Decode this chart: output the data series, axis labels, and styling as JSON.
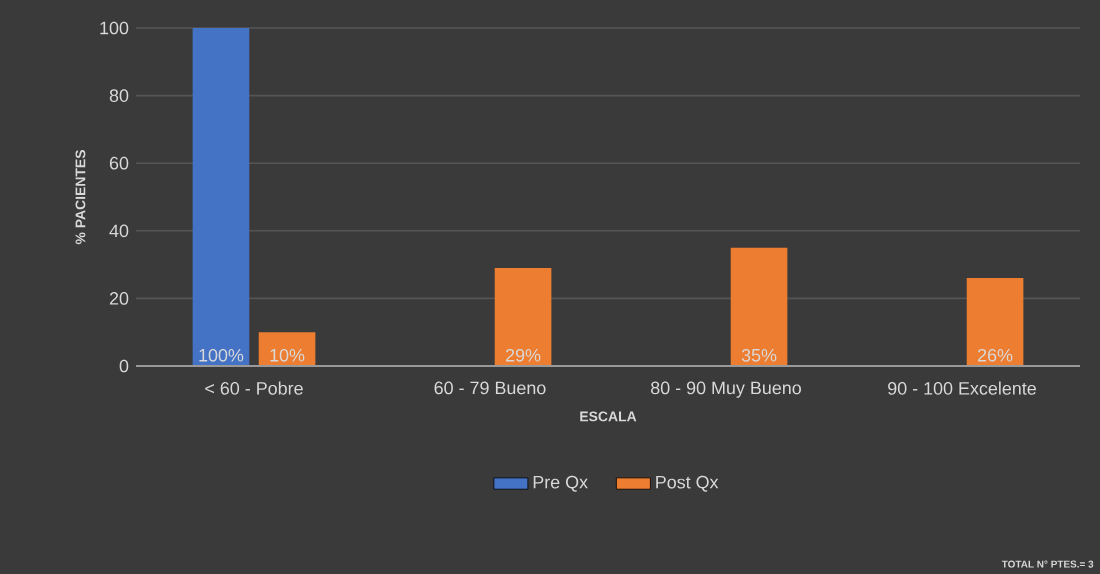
{
  "chart_data": {
    "type": "bar",
    "xlabel": "ESCALA",
    "ylabel": "% PACIENTES",
    "categories": [
      "< 60 - Pobre",
      "60 - 79 Bueno",
      "80 - 90 Muy Bueno",
      "90 - 100 Excelente"
    ],
    "series": [
      {
        "name": "Pre Qx",
        "color": "#4472c4",
        "values": [
          100,
          null,
          null,
          null
        ],
        "value_labels": [
          "100%",
          null,
          null,
          null
        ]
      },
      {
        "name": "Post Qx",
        "color": "#ed7d31",
        "values": [
          10,
          29,
          35,
          26
        ],
        "value_labels": [
          "10%",
          "29%",
          "35%",
          "26%"
        ]
      }
    ],
    "ylim": [
      0,
      100
    ],
    "yticks": [
      0,
      20,
      40,
      60,
      80,
      100
    ],
    "grid": "y",
    "legend": "bottom",
    "annotations": [
      "TOTAL N° PTES.= 3"
    ]
  }
}
